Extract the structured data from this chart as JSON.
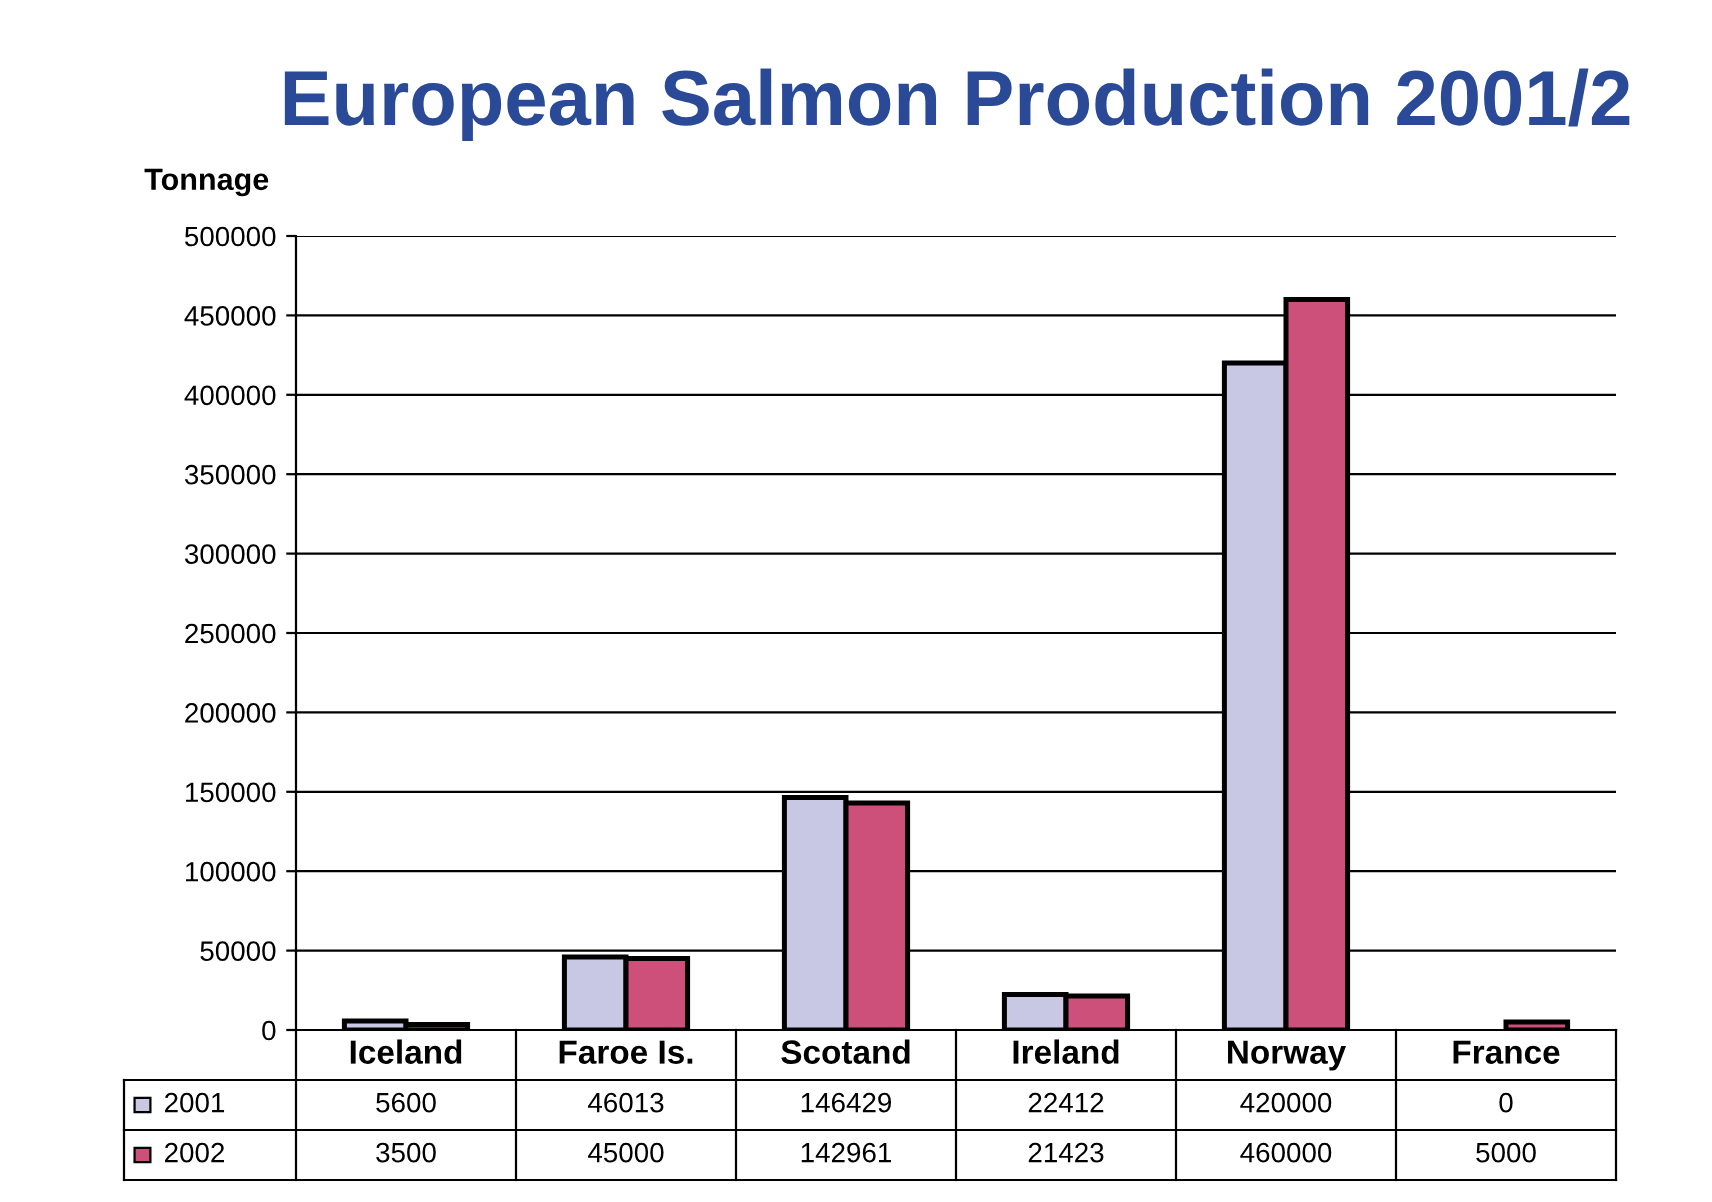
{
  "chart_data": {
    "type": "bar",
    "title": "European Salmon Production 2001/2",
    "ylabel": "Tonnage",
    "categories": [
      "Iceland",
      "Faroe Is.",
      "Scotand",
      "Ireland",
      "Norway",
      "France"
    ],
    "series": [
      {
        "name": "2001",
        "color": "#c8c8e4",
        "values": [
          5600,
          46013,
          146429,
          22412,
          420000,
          0
        ]
      },
      {
        "name": "2002",
        "color": "#cc5079",
        "values": [
          3500,
          45000,
          142961,
          21423,
          460000,
          5000
        ]
      }
    ],
    "ylim": [
      0,
      500000
    ],
    "yticks": [
      0,
      50000,
      100000,
      150000,
      200000,
      250000,
      300000,
      350000,
      400000,
      450000,
      500000
    ],
    "grid": "y",
    "legend": "bottom left",
    "data_labels": true
  }
}
